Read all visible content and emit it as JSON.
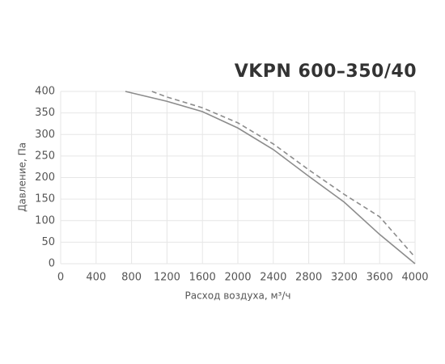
{
  "chart_data": {
    "type": "line",
    "title": "VKPN 600–350/40",
    "x_label": "Расход воздуха, м³/ч",
    "y_label": "Давление, Па",
    "xlim": [
      0,
      4000
    ],
    "xticks": [
      0,
      400,
      800,
      1200,
      1600,
      2000,
      2400,
      2800,
      3200,
      3600,
      4000
    ],
    "ylim": [
      0,
      400
    ],
    "yticks": [
      0,
      50,
      100,
      150,
      200,
      250,
      300,
      350,
      400
    ],
    "grid": true,
    "series": [
      {
        "color": "#8c8c8c",
        "dashed": false,
        "x": [
          730,
          1200,
          1600,
          2000,
          2400,
          2800,
          3200,
          3600,
          4000
        ],
        "values": [
          400,
          377,
          353,
          315,
          265,
          203,
          143,
          68,
          0
        ]
      },
      {
        "color": "#8c8c8c",
        "dashed": true,
        "x": [
          1030,
          1200,
          1600,
          2000,
          2400,
          2800,
          3200,
          3600,
          4000
        ],
        "values": [
          400,
          387,
          362,
          327,
          278,
          218,
          161,
          109,
          15
        ]
      }
    ]
  }
}
